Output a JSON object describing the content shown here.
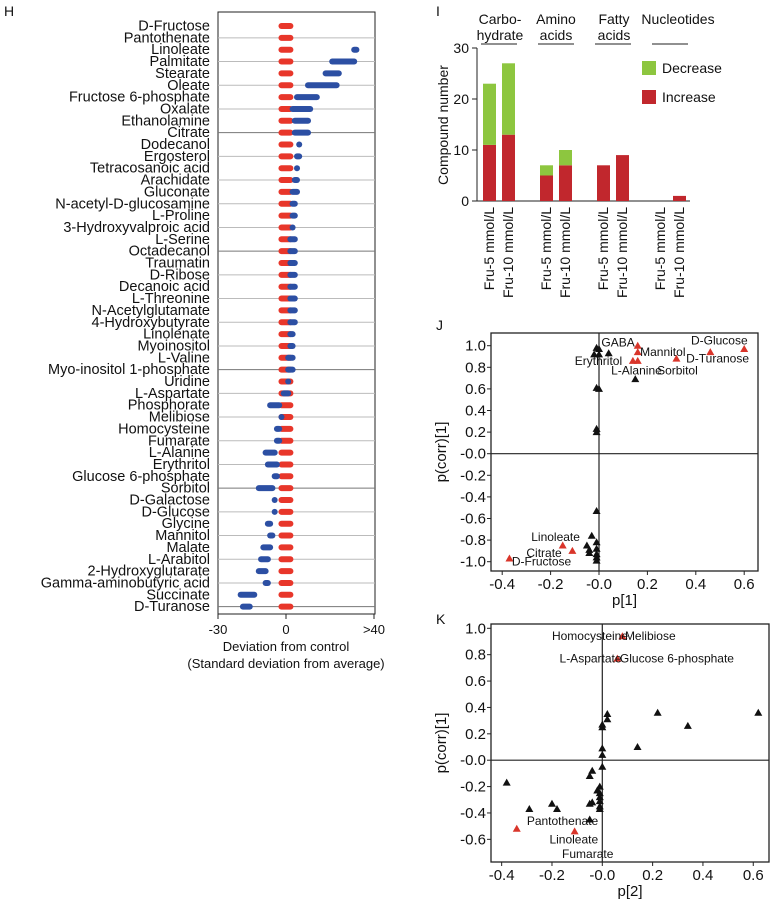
{
  "chart_data": [
    {
      "panel": "H",
      "type": "scatter",
      "xlabel": [
        "Deviation from control",
        "(Standard deviation from average)"
      ],
      "xticks": [
        "-30",
        "0",
        ">40"
      ],
      "xlim": [
        -30,
        40
      ],
      "colors": {
        "control": "#e8362a",
        "treated": "#2c4fa3"
      },
      "categories": [
        "D-Fructose",
        "Pantothenate",
        "Linoleate",
        "Palmitate",
        "Stearate",
        "Oleate",
        "Fructose 6-phosphate",
        "Oxalate",
        "Ethanolamine",
        "Citrate",
        "Dodecanol",
        "Ergosterol",
        "Tetracosanoic acid",
        "Arachidate",
        "Gluconate",
        "N-acetyl-D-glucosamine",
        "L-Proline",
        "3-Hydroxyvalproic acid",
        "L-Serine",
        "Octadecanol",
        "Traumatin",
        "D-Ribose",
        "Decanoic acid",
        "L-Threonine",
        "N-Acetylglutamate",
        "4-Hydroxybutyrate",
        "Linolenate",
        "Myoinositol",
        "L-Valine",
        "Myo-inositol 1-phosphate",
        "Uridine",
        "L-Aspartate",
        "Phosphorate",
        "Melibiose",
        "Homocysteine",
        "Fumarate",
        "L-Alanine",
        "Erythritol",
        "Glucose 6-phosphate",
        "Sorbitol",
        "D-Galactose",
        "D-Glucose",
        "Glycine",
        "Mannitol",
        "Malate",
        "L-Arabitol",
        "2-Hydroxyglutarate",
        "Gamma-aminobutyric acid",
        "Succinate",
        "D-Turanose"
      ],
      "control_range": [
        -2,
        2
      ],
      "treated_ranges": [
        [
          0,
          0
        ],
        [
          0,
          0
        ],
        [
          31,
          32
        ],
        [
          21,
          31
        ],
        [
          18,
          24
        ],
        [
          10,
          23
        ],
        [
          5,
          14
        ],
        [
          3,
          11
        ],
        [
          4,
          10
        ],
        [
          4,
          10
        ],
        [
          6,
          6
        ],
        [
          5,
          6
        ],
        [
          5,
          5
        ],
        [
          4,
          5
        ],
        [
          3,
          5
        ],
        [
          3,
          4
        ],
        [
          3,
          4
        ],
        [
          3,
          3
        ],
        [
          2,
          4
        ],
        [
          2,
          4
        ],
        [
          2,
          4
        ],
        [
          2,
          4
        ],
        [
          2,
          4
        ],
        [
          2,
          4
        ],
        [
          2,
          4
        ],
        [
          2,
          4
        ],
        [
          2,
          3
        ],
        [
          2,
          3
        ],
        [
          1,
          3
        ],
        [
          1,
          3
        ],
        [
          1,
          1
        ],
        [
          -1,
          1
        ],
        [
          -7,
          -3
        ],
        [
          -2,
          -2
        ],
        [
          -4,
          -3
        ],
        [
          -4,
          -3
        ],
        [
          -9,
          -5
        ],
        [
          -8,
          -4
        ],
        [
          -5,
          -4
        ],
        [
          -12,
          -6
        ],
        [
          -5,
          -5
        ],
        [
          -5,
          -5
        ],
        [
          -8,
          -7
        ],
        [
          -7,
          -6
        ],
        [
          -10,
          -7
        ],
        [
          -11,
          -8
        ],
        [
          -12,
          -9
        ],
        [
          -9,
          -8
        ],
        [
          -20,
          -14
        ],
        [
          -19,
          -16
        ]
      ]
    },
    {
      "panel": "I",
      "type": "bar",
      "ylabel": "Compound number",
      "ylim": [
        0,
        30
      ],
      "yticks": [
        0,
        10,
        20,
        30
      ],
      "groups": [
        "Carbo-|hydrate",
        "Amino|acids",
        "Fatty|acids",
        "Nucleotides"
      ],
      "categories": [
        "Fru-5 mmol/L",
        "Fru-10 mmol/L"
      ],
      "legend": [
        {
          "name": "Decrease",
          "color": "#8dc63f"
        },
        {
          "name": "Increase",
          "color": "#c1272d"
        }
      ],
      "series": [
        {
          "name": "Increase",
          "values": [
            [
              11,
              13
            ],
            [
              5,
              7
            ],
            [
              7,
              9
            ],
            [
              0,
              1
            ]
          ]
        },
        {
          "name": "Decrease",
          "values": [
            [
              12,
              14
            ],
            [
              2,
              3
            ],
            [
              0,
              0
            ],
            [
              0,
              0
            ]
          ]
        }
      ]
    },
    {
      "panel": "J",
      "type": "scatter",
      "xlabel": "p[1]",
      "ylabel": "p(corr)[1]",
      "xlim": [
        -0.4,
        0.6
      ],
      "ylim": [
        -1.0,
        1.0
      ],
      "xticks": [
        "-0.4",
        "-0.2",
        "-0.0",
        "0.2",
        "0.4",
        "0.6"
      ],
      "yticks": [
        "1.0",
        "0.8",
        "0.6",
        "0.4",
        "0.2",
        "-0.0",
        "-0.2",
        "-0.4",
        "-0.6",
        "-0.8",
        "-1.0"
      ],
      "black": [
        [
          -0.01,
          0.98
        ],
        [
          0.0,
          0.97
        ],
        [
          -0.02,
          0.92
        ],
        [
          0.0,
          0.92
        ],
        [
          0.04,
          0.93
        ],
        [
          -0.01,
          0.61
        ],
        [
          0.0,
          0.6
        ],
        [
          -0.01,
          0.23
        ],
        [
          -0.01,
          0.2
        ],
        [
          -0.01,
          -0.53
        ],
        [
          -0.03,
          -0.76
        ],
        [
          -0.05,
          -0.85
        ],
        [
          -0.04,
          -0.89
        ],
        [
          -0.04,
          -0.92
        ],
        [
          -0.01,
          -0.82
        ],
        [
          -0.01,
          -0.88
        ],
        [
          -0.01,
          -0.93
        ],
        [
          -0.01,
          -0.96
        ],
        [
          -0.01,
          -0.99
        ],
        [
          0.15,
          0.69
        ]
      ],
      "red": [
        [
          0.16,
          1.0
        ],
        [
          0.16,
          0.94
        ],
        [
          0.14,
          0.86
        ],
        [
          0.16,
          0.86
        ],
        [
          0.32,
          0.88
        ],
        [
          0.46,
          0.94
        ],
        [
          0.6,
          0.97
        ],
        [
          -0.15,
          -0.85
        ],
        [
          -0.11,
          -0.9
        ],
        [
          -0.37,
          -0.97
        ]
      ],
      "labels": [
        {
          "t": "GABA",
          "x": 0.01,
          "y": 1.03
        },
        {
          "t": "Mannitol",
          "x": 0.17,
          "y": 0.94
        },
        {
          "t": "Erythritol",
          "x": -0.1,
          "y": 0.86
        },
        {
          "t": "L-Alanine",
          "x": 0.05,
          "y": 0.77
        },
        {
          "t": "Sorbitol",
          "x": 0.24,
          "y": 0.77
        },
        {
          "t": "D-Glucose",
          "x": 0.38,
          "y": 1.05
        },
        {
          "t": "D-Turanose",
          "x": 0.36,
          "y": 0.88
        },
        {
          "t": "Linoleate",
          "x": -0.28,
          "y": -0.77
        },
        {
          "t": "Citrate",
          "x": -0.3,
          "y": -0.92
        },
        {
          "t": "D-Fructose",
          "x": -0.36,
          "y": -1.0
        }
      ]
    },
    {
      "panel": "K",
      "type": "scatter",
      "xlabel": "p[2]",
      "ylabel": "p(corr)[1]",
      "xlim": [
        -0.4,
        0.6
      ],
      "ylim": [
        -0.6,
        1.0
      ],
      "xticks": [
        "-0.4",
        "-0.2",
        "-0.0",
        "0.2",
        "0.4",
        "0.6"
      ],
      "yticks": [
        "1.0",
        "0.8",
        "0.6",
        "0.4",
        "0.2",
        "-0.0",
        "-0.2",
        "-0.4",
        "-0.6"
      ],
      "black": [
        [
          -0.38,
          -0.17
        ],
        [
          -0.29,
          -0.37
        ],
        [
          -0.2,
          -0.33
        ],
        [
          -0.18,
          -0.37
        ],
        [
          -0.05,
          -0.12
        ],
        [
          -0.04,
          -0.08
        ],
        [
          -0.05,
          -0.33
        ],
        [
          -0.04,
          -0.32
        ],
        [
          -0.05,
          -0.45
        ],
        [
          -0.02,
          -0.23
        ],
        [
          -0.01,
          -0.2
        ],
        [
          -0.01,
          -0.25
        ],
        [
          -0.01,
          -0.28
        ],
        [
          -0.01,
          -0.31
        ],
        [
          -0.01,
          -0.35
        ],
        [
          -0.01,
          -0.37
        ],
        [
          0.0,
          -0.05
        ],
        [
          0.0,
          0.04
        ],
        [
          0.0,
          0.09
        ],
        [
          0.0,
          0.25
        ],
        [
          0.0,
          0.27
        ],
        [
          0.02,
          0.35
        ],
        [
          0.02,
          0.31
        ],
        [
          0.14,
          0.1
        ],
        [
          0.22,
          0.36
        ],
        [
          0.34,
          0.26
        ],
        [
          0.62,
          0.36
        ]
      ],
      "red": [
        [
          0.08,
          0.94
        ],
        [
          0.06,
          0.77
        ],
        [
          -0.34,
          -0.52
        ],
        [
          -0.11,
          -0.54
        ]
      ],
      "labels": [
        {
          "t": "Homocysteine",
          "x": -0.2,
          "y": 0.94
        },
        {
          "t": "Melibiose",
          "x": 0.09,
          "y": 0.94
        },
        {
          "t": "L-Aspartate",
          "x": -0.17,
          "y": 0.77
        },
        {
          "t": "Glucose 6-phosphate",
          "x": 0.07,
          "y": 0.77
        },
        {
          "t": "Pantothenate",
          "x": -0.3,
          "y": -0.46
        },
        {
          "t": "Linoleate",
          "x": -0.21,
          "y": -0.6
        },
        {
          "t": "Fumarate",
          "x": -0.16,
          "y": -0.71
        }
      ]
    }
  ],
  "panel_letters": [
    "H",
    "I",
    "J",
    "K"
  ]
}
